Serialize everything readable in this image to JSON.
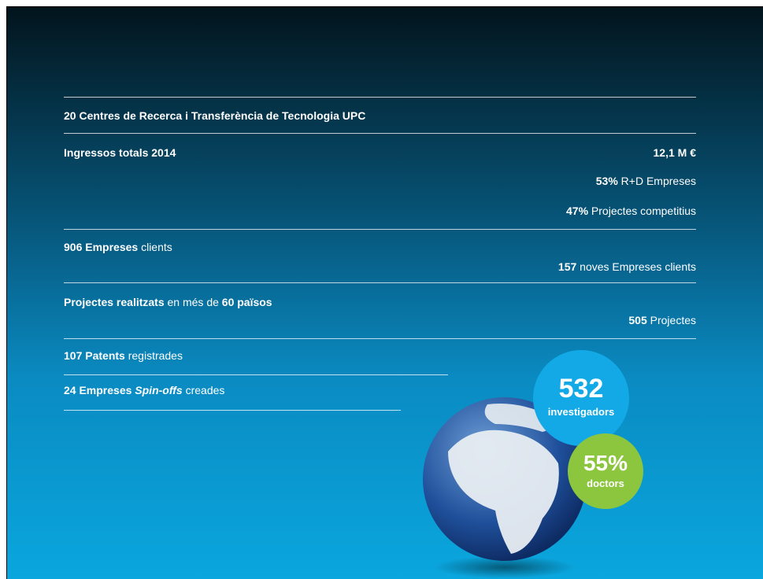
{
  "entries": [
    {
      "align": "left",
      "parts": [
        {
          "text": "20 Centres de Recerca i Transferència de Tecnologia UPC",
          "bold": true
        }
      ]
    },
    {
      "align": "left",
      "parts": [
        {
          "text": "Ingressos totals 2014",
          "bold": true
        }
      ]
    },
    {
      "align": "right",
      "parts": [
        {
          "text": "12,1 M €",
          "bold": true
        }
      ]
    },
    {
      "align": "right",
      "parts": [
        {
          "text": "53%",
          "bold": true
        },
        {
          "text": " R+D Empreses",
          "bold": false
        }
      ]
    },
    {
      "align": "right",
      "parts": [
        {
          "text": "47%",
          "bold": true
        },
        {
          "text": " Projectes competitius",
          "bold": false
        }
      ]
    },
    {
      "align": "left",
      "parts": [
        {
          "text": "906 Empreses",
          "bold": true
        },
        {
          "text": " clients",
          "bold": false
        }
      ]
    },
    {
      "align": "right",
      "parts": [
        {
          "text": "157",
          "bold": true
        },
        {
          "text": " noves Empreses clients",
          "bold": false
        }
      ]
    },
    {
      "align": "left",
      "parts": [
        {
          "text": "Projectes realitzats",
          "bold": true
        },
        {
          "text": " en més de ",
          "bold": false
        },
        {
          "text": "60 països",
          "bold": true
        }
      ]
    },
    {
      "align": "right",
      "parts": [
        {
          "text": "505",
          "bold": true
        },
        {
          "text": " Projectes",
          "bold": false
        }
      ]
    },
    {
      "align": "left",
      "parts": [
        {
          "text": "107 Patents",
          "bold": true
        },
        {
          "text": " registrades",
          "bold": false
        }
      ]
    },
    {
      "align": "left",
      "parts": [
        {
          "text": "24 Empreses ",
          "bold": true
        },
        {
          "text": "Spin-offs",
          "bold": true,
          "italic": true
        },
        {
          "text": " creades",
          "bold": false
        }
      ]
    }
  ],
  "badges": [
    {
      "number": "532",
      "label": "investigadors"
    },
    {
      "number": "55%",
      "label": "doctors"
    }
  ]
}
